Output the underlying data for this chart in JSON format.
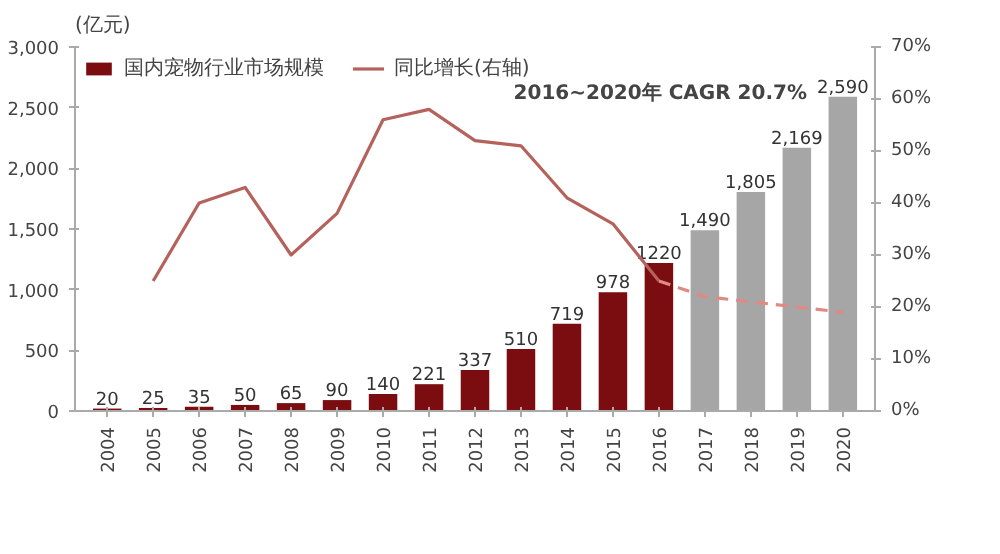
{
  "chart_data": {
    "type": "bar",
    "ylabel": "(亿元)",
    "annotations": [
      "2016~2020年 CAGR 20.7%"
    ],
    "categories": [
      "2004",
      "2005",
      "2006",
      "2007",
      "2008",
      "2009",
      "2010",
      "2011",
      "2012",
      "2013",
      "2014",
      "2015",
      "2016",
      "2017",
      "2018",
      "2019",
      "2020"
    ],
    "series": [
      {
        "name": "国内宠物行业市场规模",
        "color": "#7b0c10",
        "colors": [
          "#7b0c10",
          "#7b0c10",
          "#7b0c10",
          "#7b0c10",
          "#7b0c10",
          "#7b0c10",
          "#7b0c10",
          "#7b0c10",
          "#7b0c10",
          "#7b0c10",
          "#7b0c10",
          "#7b0c10",
          "#7b0c10",
          "#a6a6a6",
          "#a6a6a6",
          "#a6a6a6",
          "#a6a6a6"
        ],
        "values": [
          20,
          25,
          35,
          50,
          65,
          90,
          140,
          221,
          337,
          510,
          719,
          978,
          1220,
          1490,
          1805,
          2169,
          2590
        ],
        "value_labels": [
          "20",
          "25",
          "35",
          "50",
          "65",
          "90",
          "140",
          "221",
          "337",
          "510",
          "719",
          "978",
          "1220",
          "1,490",
          "1,805",
          "2,169",
          "2,590"
        ]
      },
      {
        "name": "同比增长(右轴)",
        "type": "line",
        "axis": "y2",
        "color": "#b5615c",
        "line_style": "solid",
        "values": [
          null,
          25,
          40,
          43,
          30,
          38,
          56,
          58,
          52,
          51,
          41,
          36,
          25,
          null,
          null,
          null,
          null
        ]
      },
      {
        "type": "line",
        "axis": "y2",
        "color": "#e08a84",
        "line_style": "dashed",
        "values": [
          null,
          null,
          null,
          null,
          null,
          null,
          null,
          null,
          null,
          null,
          null,
          null,
          25,
          22,
          21,
          20,
          19
        ]
      }
    ],
    "ylim": [
      0,
      3000
    ],
    "yticks": [
      0,
      {
        "value": 500,
        "label": "500"
      },
      {
        "value": 1000,
        "label": "1,000"
      },
      {
        "value": 1500,
        "label": "1,500"
      },
      {
        "value": 2000,
        "label": "2,000"
      },
      {
        "value": 2500,
        "label": "2,500"
      },
      {
        "value": 3000,
        "label": "3,000"
      }
    ],
    "y2lim": [
      0,
      70
    ],
    "y2ticks": [
      {
        "value": 0,
        "label": "0%"
      },
      {
        "value": 10,
        "label": "10%"
      },
      {
        "value": 20,
        "label": "20%"
      },
      {
        "value": 30,
        "label": "30%"
      },
      {
        "value": 40,
        "label": "40%"
      },
      {
        "value": 50,
        "label": "50%"
      },
      {
        "value": 60,
        "label": "60%"
      },
      {
        "value": 70,
        "label": "70%"
      }
    ],
    "legend": "top",
    "grid": false,
    "marker": "none"
  }
}
